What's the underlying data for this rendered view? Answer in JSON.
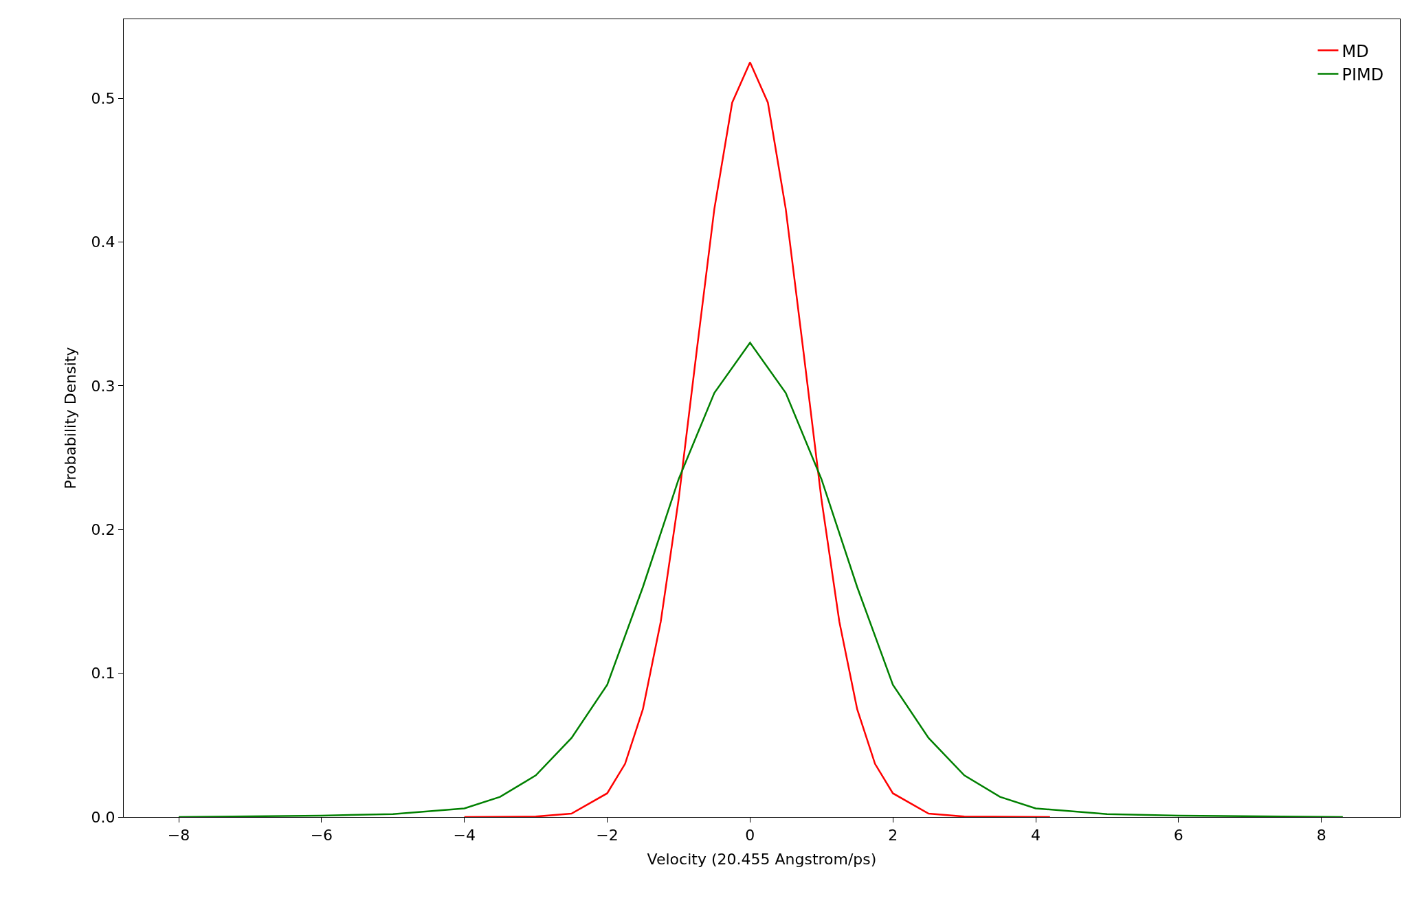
{
  "chart_data": {
    "type": "line",
    "xlabel": "Velocity (20.455 Angstrom/ps)",
    "ylabel": "Probability Density",
    "xlim": [
      -8.77,
      9.1
    ],
    "xticks": [
      {
        "value": -8,
        "label": "−8"
      },
      {
        "value": -6,
        "label": "−6"
      },
      {
        "value": -4,
        "label": "−4"
      },
      {
        "value": -2,
        "label": "−2"
      },
      0,
      2,
      4,
      6,
      8
    ],
    "ylim": [
      0,
      0.555
    ],
    "yticks": [
      {
        "value": 0,
        "label": "0.0"
      },
      0.1,
      0.2,
      0.3,
      0.4,
      0.5
    ],
    "legend": "top right",
    "marker": "none",
    "line_style": "solid",
    "series": [
      {
        "name": "MD",
        "color": "#ff0000",
        "x": [
          -4,
          -3,
          -2.5,
          -2,
          -1.75,
          -1.5,
          -1.25,
          -1,
          -0.75,
          -0.5,
          -0.25,
          0,
          0.25,
          0.5,
          0.75,
          1,
          1.25,
          1.5,
          1.75,
          2,
          2.5,
          3,
          4.2
        ],
        "values": [
          0,
          0.0003,
          0.0024,
          0.0165,
          0.037,
          0.075,
          0.136,
          0.221,
          0.323,
          0.423,
          0.497,
          0.525,
          0.497,
          0.423,
          0.323,
          0.221,
          0.136,
          0.075,
          0.037,
          0.0165,
          0.0024,
          0.0003,
          0
        ]
      },
      {
        "name": "PIMD",
        "color": "#008000",
        "x": [
          -8,
          -6,
          -5,
          -4,
          -3.5,
          -3,
          -2.5,
          -2,
          -1.5,
          -1,
          -0.5,
          0,
          0.5,
          1,
          1.5,
          2,
          2.5,
          3,
          3.5,
          4,
          5,
          6,
          8.3
        ],
        "values": [
          0,
          0.001,
          0.002,
          0.006,
          0.014,
          0.029,
          0.055,
          0.092,
          0.16,
          0.235,
          0.295,
          0.33,
          0.295,
          0.235,
          0.16,
          0.092,
          0.055,
          0.029,
          0.014,
          0.006,
          0.002,
          0.001,
          0
        ]
      }
    ]
  }
}
